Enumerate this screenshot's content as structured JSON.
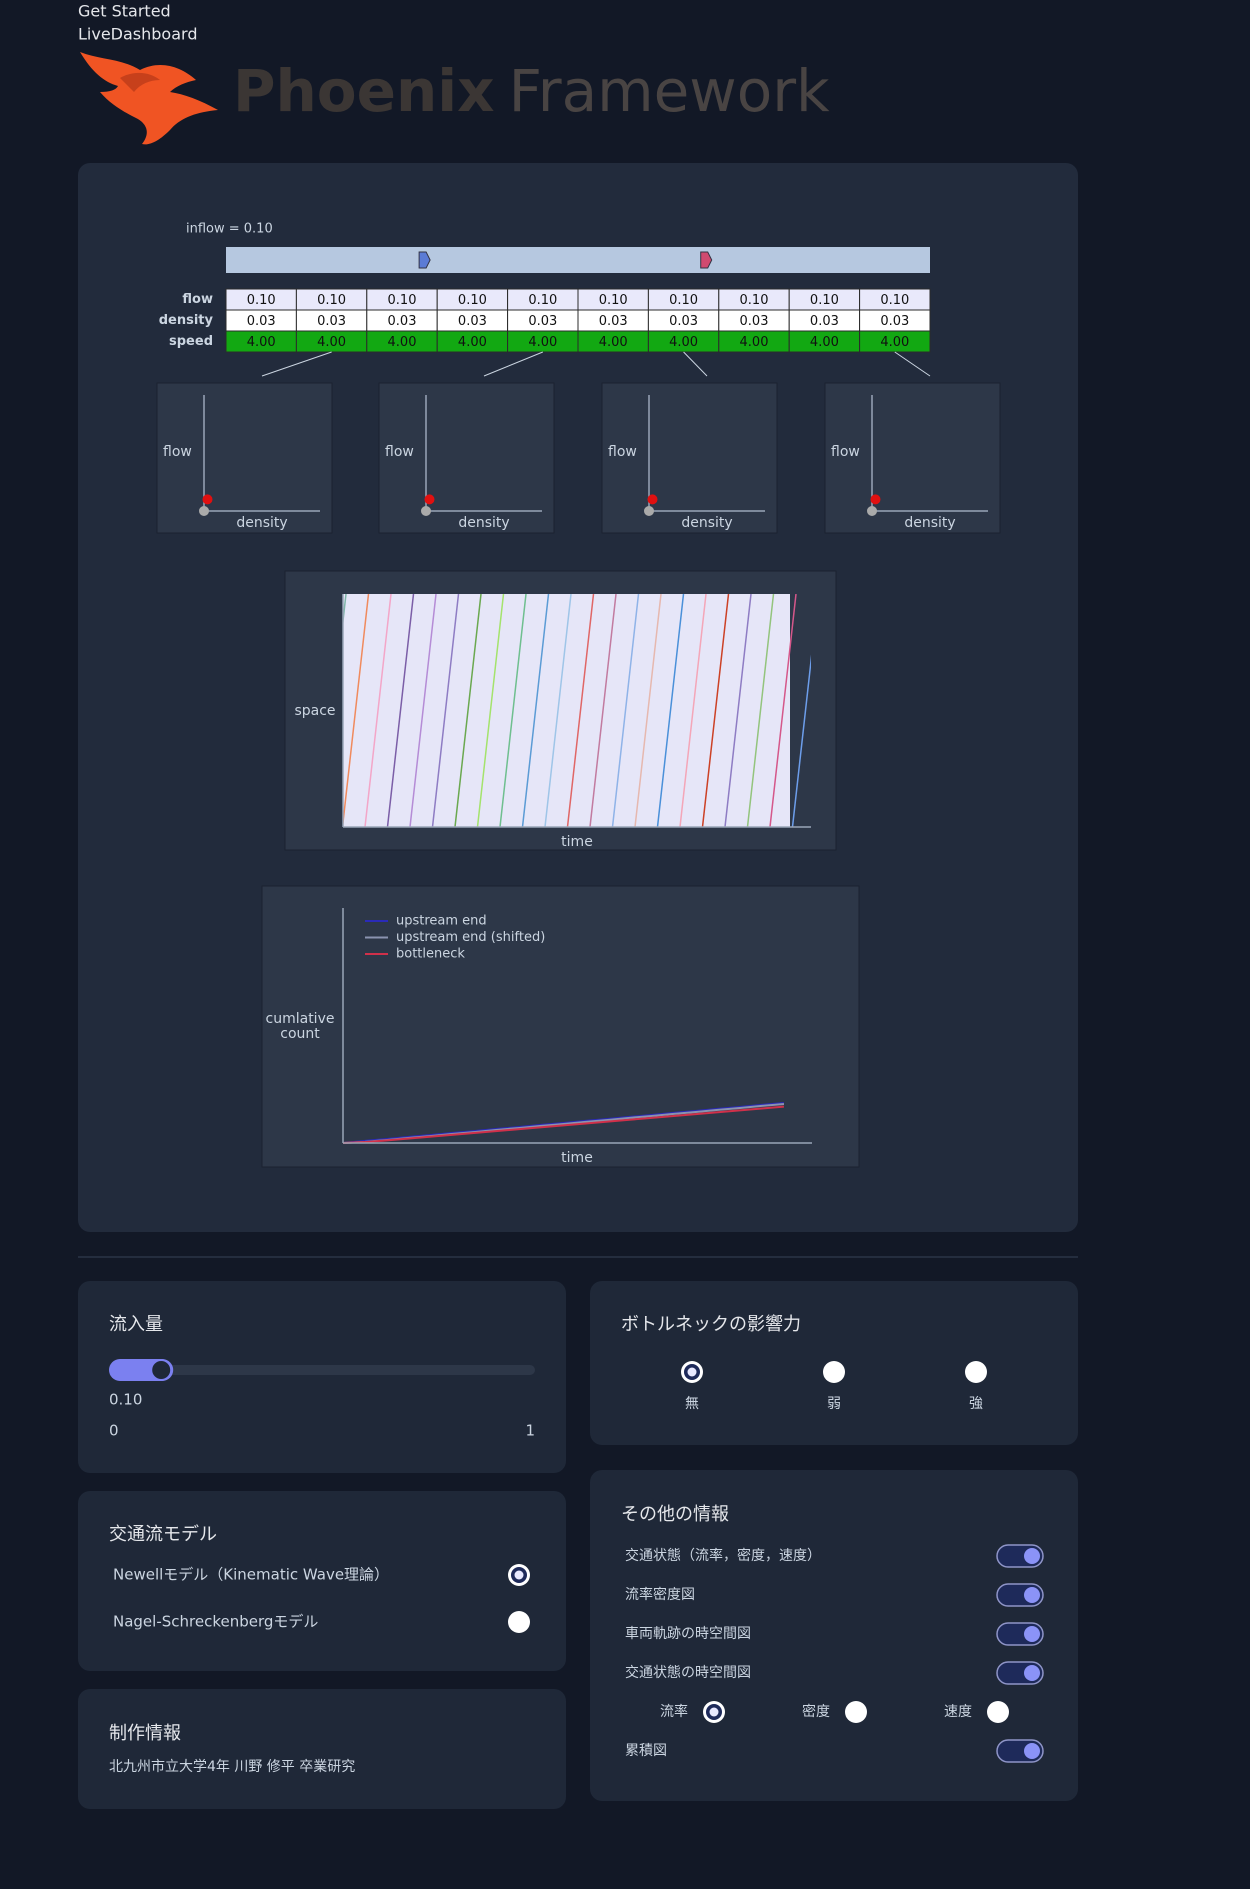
{
  "nav": {
    "links": [
      "Get Started",
      "LiveDashboard"
    ]
  },
  "logo": {
    "name": "Phoenix",
    "suffix": "Framework"
  },
  "simulation": {
    "inflow_label": "inflow = 0.10",
    "road": {
      "length": 1,
      "vehicles": [
        {
          "position": 0.28,
          "color": "#5b7bd5"
        },
        {
          "position": 0.68,
          "color": "#d04a70"
        }
      ]
    },
    "table": {
      "row_labels": [
        "flow",
        "density",
        "speed"
      ],
      "rows": [
        [
          "0.10",
          "0.10",
          "0.10",
          "0.10",
          "0.10",
          "0.10",
          "0.10",
          "0.10",
          "0.10",
          "0.10"
        ],
        [
          "0.03",
          "0.03",
          "0.03",
          "0.03",
          "0.03",
          "0.03",
          "0.03",
          "0.03",
          "0.03",
          "0.03"
        ],
        [
          "4.00",
          "4.00",
          "4.00",
          "4.00",
          "4.00",
          "4.00",
          "4.00",
          "4.00",
          "4.00",
          "4.00"
        ]
      ]
    },
    "fd_plots": {
      "x_label": "density",
      "y_label": "flow",
      "xlim": [
        0,
        1
      ],
      "ylim": [
        0,
        1
      ],
      "plots": [
        {
          "cell": 1,
          "density": 0.03,
          "flow": 0.1
        },
        {
          "cell": 4,
          "density": 0.03,
          "flow": 0.1
        },
        {
          "cell": 6,
          "density": 0.03,
          "flow": 0.1
        },
        {
          "cell": 9,
          "density": 0.03,
          "flow": 0.1
        }
      ]
    },
    "space_time": {
      "x_label": "time",
      "y_label": "space",
      "trajectory_colors": [
        "#7fb5a8",
        "#f08a5d",
        "#f3a6c8",
        "#7b5ea7",
        "#b58cd6",
        "#8e7cc3",
        "#6aa84f",
        "#a4e36c",
        "#6fbf8f",
        "#5b9bd5",
        "#9fc5e8",
        "#e06666",
        "#c27ba0",
        "#8fb3e8",
        "#e6b8af",
        "#4a90d9",
        "#f4a6b8",
        "#cc4125",
        "#8e7cc3",
        "#93c47d",
        "#d5578a",
        "#6d9eeb"
      ]
    },
    "cumulative": {
      "x_label": "time",
      "y_label": [
        "cumlative",
        "count"
      ],
      "xlim": [
        0,
        21
      ],
      "ylim": [
        0,
        100
      ],
      "series": [
        {
          "name": "upstream end",
          "color": "#2a2ab8",
          "values": [
            0,
            0.9,
            1.7,
            2.6,
            3.4,
            4.3,
            5.1,
            6.0,
            6.8,
            7.7,
            8.5,
            9.4,
            10.2,
            11.1,
            11.9,
            12.8,
            13.6,
            14.5,
            15.3,
            16.2,
            17
          ]
        },
        {
          "name": "upstream end (shifted)",
          "color": "#8a93b0",
          "values": [
            0,
            0.5,
            1.3,
            2.2,
            3.0,
            3.9,
            4.7,
            5.6,
            6.4,
            7.3,
            8.1,
            9.0,
            9.8,
            10.7,
            11.5,
            12.4,
            13.2,
            14.1,
            14.9,
            15.8,
            16.6
          ]
        },
        {
          "name": "bottleneck",
          "color": "#d0304a",
          "values": [
            0,
            0.4,
            1.1,
            1.9,
            2.7,
            3.5,
            4.3,
            5.1,
            5.9,
            6.7,
            7.5,
            8.3,
            9.1,
            9.9,
            10.7,
            11.5,
            12.3,
            13.1,
            13.9,
            14.7,
            15.5
          ]
        }
      ]
    }
  },
  "controls": {
    "inflow": {
      "title": "流入量",
      "value": 0.1,
      "value_label": "0.10",
      "min": 0,
      "max": 1
    },
    "bottleneck": {
      "title": "ボトルネックの影響力",
      "options": [
        "無",
        "弱",
        "強"
      ],
      "selected": 0
    },
    "model": {
      "title": "交通流モデル",
      "options": [
        "Newellモデル（Kinematic Wave理論）",
        "Nagel-Schreckenbergモデル"
      ],
      "selected": 0
    },
    "info": {
      "title": "その他の情報",
      "toggles": [
        {
          "label": "交通状態（流率，密度，速度）",
          "on": true
        },
        {
          "label": "流率密度図",
          "on": true
        },
        {
          "label": "車両軌跡の時空間図",
          "on": true
        },
        {
          "label": "交通状態の時空間図",
          "on": true
        },
        {
          "label": "累積図",
          "on": true
        }
      ],
      "state_options": [
        "流率",
        "密度",
        "速度"
      ],
      "state_selected": 0
    },
    "credits": {
      "title": "制作情報",
      "text": "北九州市立大学4年 川野 修平 卒業研究"
    }
  }
}
